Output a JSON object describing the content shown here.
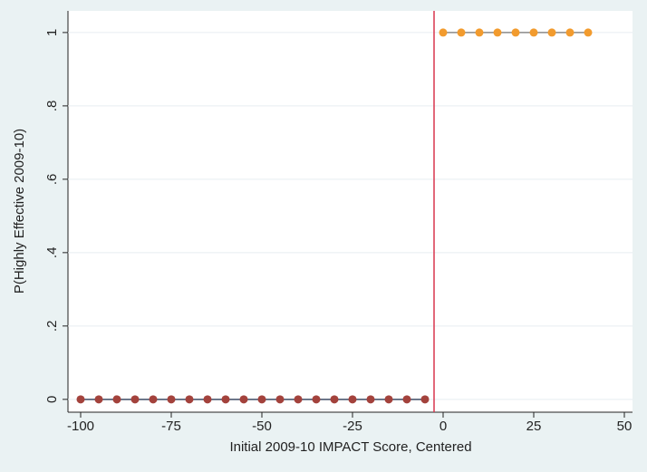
{
  "chart_data": {
    "type": "scatter",
    "x_label": "Initial 2009-10 IMPACT Score, Centered",
    "y_label": "P(Highly Effective 2009-10)",
    "series": [
      {
        "color": "#a3423c",
        "line_color": "#3f4c66",
        "x": [
          -100,
          -95,
          -90,
          -85,
          -80,
          -75,
          -70,
          -65,
          -60,
          -55,
          -50,
          -45,
          -40,
          -35,
          -30,
          -25,
          -20,
          -15,
          -10,
          -5
        ],
        "values": [
          0,
          0,
          0,
          0,
          0,
          0,
          0,
          0,
          0,
          0,
          0,
          0,
          0,
          0,
          0,
          0,
          0,
          0,
          0,
          0
        ]
      },
      {
        "color": "#f29b2e",
        "line_color": "#8a8a8a",
        "x": [
          0,
          5,
          10,
          15,
          20,
          25,
          30,
          35,
          40
        ],
        "values": [
          1,
          1,
          1,
          1,
          1,
          1,
          1,
          1,
          1
        ]
      }
    ],
    "cutoff": -2.5,
    "cutoff_color": "#d9364e",
    "xlim": [
      -103.5,
      52.25
    ],
    "xticks": [
      -100,
      -75,
      -50,
      -25,
      0,
      25,
      50
    ],
    "ylim": [
      -0.035,
      1.059
    ],
    "yticks": [
      0,
      {
        "value": 0.2,
        "label": ".2"
      },
      {
        "value": 0.4,
        "label": ".4"
      },
      {
        "value": 0.6,
        "label": ".6"
      },
      {
        "value": 0.8,
        "label": ".8"
      },
      1
    ]
  }
}
